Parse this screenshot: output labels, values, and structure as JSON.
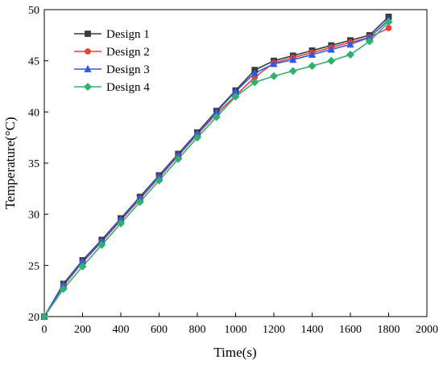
{
  "chart_data": {
    "type": "line",
    "title": "",
    "xlabel": "Time(s)",
    "ylabel": "Temperature(°C)",
    "xlim": [
      0,
      2000
    ],
    "ylim": [
      20,
      50
    ],
    "x_ticks": [
      0,
      200,
      400,
      600,
      800,
      1000,
      1200,
      1400,
      1600,
      1800,
      2000
    ],
    "y_ticks": [
      20,
      25,
      30,
      35,
      40,
      45,
      50
    ],
    "grid": false,
    "legend_position": "top-left",
    "x": [
      0,
      100,
      200,
      300,
      400,
      500,
      600,
      700,
      800,
      900,
      1000,
      1100,
      1200,
      1300,
      1400,
      1500,
      1600,
      1700,
      1800
    ],
    "series": [
      {
        "name": "Design 1",
        "color": "#3a3a3a",
        "marker": "square",
        "values": [
          20,
          23.2,
          25.5,
          27.5,
          29.6,
          31.7,
          33.8,
          35.9,
          38.0,
          40.1,
          42.1,
          44.1,
          45.0,
          45.5,
          46.0,
          46.5,
          47.0,
          47.5,
          49.3
        ]
      },
      {
        "name": "Design 2",
        "color": "#e8403c",
        "marker": "circle",
        "values": [
          20,
          23.0,
          25.3,
          27.3,
          29.4,
          31.5,
          33.6,
          35.7,
          37.8,
          39.8,
          41.6,
          43.4,
          44.8,
          45.3,
          45.8,
          46.3,
          46.8,
          47.3,
          48.2
        ]
      },
      {
        "name": "Design 3",
        "color": "#2b5ce8",
        "marker": "triangle",
        "values": [
          20,
          23.1,
          25.4,
          27.4,
          29.5,
          31.6,
          33.7,
          35.8,
          37.9,
          40.0,
          42.0,
          43.8,
          44.7,
          45.1,
          45.6,
          46.1,
          46.6,
          47.3,
          49.0
        ]
      },
      {
        "name": "Design 4",
        "color": "#2fb06e",
        "marker": "diamond",
        "values": [
          20,
          22.7,
          24.9,
          27.0,
          29.1,
          31.2,
          33.3,
          35.4,
          37.5,
          39.5,
          41.5,
          42.9,
          43.5,
          44.0,
          44.5,
          45.0,
          45.6,
          46.9,
          48.8
        ]
      }
    ]
  }
}
